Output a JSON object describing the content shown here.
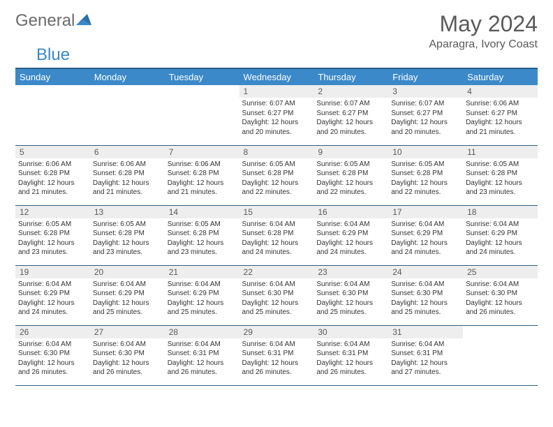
{
  "brand": {
    "part1": "General",
    "part2": "Blue",
    "color1": "#6b6b6b",
    "color2": "#3b89c9"
  },
  "title": "May 2024",
  "location": "Aparagra, Ivory Coast",
  "colors": {
    "header_bg": "#3b89c9",
    "header_border": "#2d5f87",
    "daynum_bg": "#eeeeee",
    "text": "#5a5a5a"
  },
  "weekdays": [
    "Sunday",
    "Monday",
    "Tuesday",
    "Wednesday",
    "Thursday",
    "Friday",
    "Saturday"
  ],
  "weeks": [
    [
      {
        "n": "",
        "t": ""
      },
      {
        "n": "",
        "t": ""
      },
      {
        "n": "",
        "t": ""
      },
      {
        "n": "1",
        "t": "Sunrise: 6:07 AM\nSunset: 6:27 PM\nDaylight: 12 hours and 20 minutes."
      },
      {
        "n": "2",
        "t": "Sunrise: 6:07 AM\nSunset: 6:27 PM\nDaylight: 12 hours and 20 minutes."
      },
      {
        "n": "3",
        "t": "Sunrise: 6:07 AM\nSunset: 6:27 PM\nDaylight: 12 hours and 20 minutes."
      },
      {
        "n": "4",
        "t": "Sunrise: 6:06 AM\nSunset: 6:27 PM\nDaylight: 12 hours and 21 minutes."
      }
    ],
    [
      {
        "n": "5",
        "t": "Sunrise: 6:06 AM\nSunset: 6:28 PM\nDaylight: 12 hours and 21 minutes."
      },
      {
        "n": "6",
        "t": "Sunrise: 6:06 AM\nSunset: 6:28 PM\nDaylight: 12 hours and 21 minutes."
      },
      {
        "n": "7",
        "t": "Sunrise: 6:06 AM\nSunset: 6:28 PM\nDaylight: 12 hours and 21 minutes."
      },
      {
        "n": "8",
        "t": "Sunrise: 6:05 AM\nSunset: 6:28 PM\nDaylight: 12 hours and 22 minutes."
      },
      {
        "n": "9",
        "t": "Sunrise: 6:05 AM\nSunset: 6:28 PM\nDaylight: 12 hours and 22 minutes."
      },
      {
        "n": "10",
        "t": "Sunrise: 6:05 AM\nSunset: 6:28 PM\nDaylight: 12 hours and 22 minutes."
      },
      {
        "n": "11",
        "t": "Sunrise: 6:05 AM\nSunset: 6:28 PM\nDaylight: 12 hours and 23 minutes."
      }
    ],
    [
      {
        "n": "12",
        "t": "Sunrise: 6:05 AM\nSunset: 6:28 PM\nDaylight: 12 hours and 23 minutes."
      },
      {
        "n": "13",
        "t": "Sunrise: 6:05 AM\nSunset: 6:28 PM\nDaylight: 12 hours and 23 minutes."
      },
      {
        "n": "14",
        "t": "Sunrise: 6:05 AM\nSunset: 6:28 PM\nDaylight: 12 hours and 23 minutes."
      },
      {
        "n": "15",
        "t": "Sunrise: 6:04 AM\nSunset: 6:28 PM\nDaylight: 12 hours and 24 minutes."
      },
      {
        "n": "16",
        "t": "Sunrise: 6:04 AM\nSunset: 6:29 PM\nDaylight: 12 hours and 24 minutes."
      },
      {
        "n": "17",
        "t": "Sunrise: 6:04 AM\nSunset: 6:29 PM\nDaylight: 12 hours and 24 minutes."
      },
      {
        "n": "18",
        "t": "Sunrise: 6:04 AM\nSunset: 6:29 PM\nDaylight: 12 hours and 24 minutes."
      }
    ],
    [
      {
        "n": "19",
        "t": "Sunrise: 6:04 AM\nSunset: 6:29 PM\nDaylight: 12 hours and 24 minutes."
      },
      {
        "n": "20",
        "t": "Sunrise: 6:04 AM\nSunset: 6:29 PM\nDaylight: 12 hours and 25 minutes."
      },
      {
        "n": "21",
        "t": "Sunrise: 6:04 AM\nSunset: 6:29 PM\nDaylight: 12 hours and 25 minutes."
      },
      {
        "n": "22",
        "t": "Sunrise: 6:04 AM\nSunset: 6:30 PM\nDaylight: 12 hours and 25 minutes."
      },
      {
        "n": "23",
        "t": "Sunrise: 6:04 AM\nSunset: 6:30 PM\nDaylight: 12 hours and 25 minutes."
      },
      {
        "n": "24",
        "t": "Sunrise: 6:04 AM\nSunset: 6:30 PM\nDaylight: 12 hours and 25 minutes."
      },
      {
        "n": "25",
        "t": "Sunrise: 6:04 AM\nSunset: 6:30 PM\nDaylight: 12 hours and 26 minutes."
      }
    ],
    [
      {
        "n": "26",
        "t": "Sunrise: 6:04 AM\nSunset: 6:30 PM\nDaylight: 12 hours and 26 minutes."
      },
      {
        "n": "27",
        "t": "Sunrise: 6:04 AM\nSunset: 6:30 PM\nDaylight: 12 hours and 26 minutes."
      },
      {
        "n": "28",
        "t": "Sunrise: 6:04 AM\nSunset: 6:31 PM\nDaylight: 12 hours and 26 minutes."
      },
      {
        "n": "29",
        "t": "Sunrise: 6:04 AM\nSunset: 6:31 PM\nDaylight: 12 hours and 26 minutes."
      },
      {
        "n": "30",
        "t": "Sunrise: 6:04 AM\nSunset: 6:31 PM\nDaylight: 12 hours and 26 minutes."
      },
      {
        "n": "31",
        "t": "Sunrise: 6:04 AM\nSunset: 6:31 PM\nDaylight: 12 hours and 27 minutes."
      },
      {
        "n": "",
        "t": ""
      }
    ]
  ]
}
